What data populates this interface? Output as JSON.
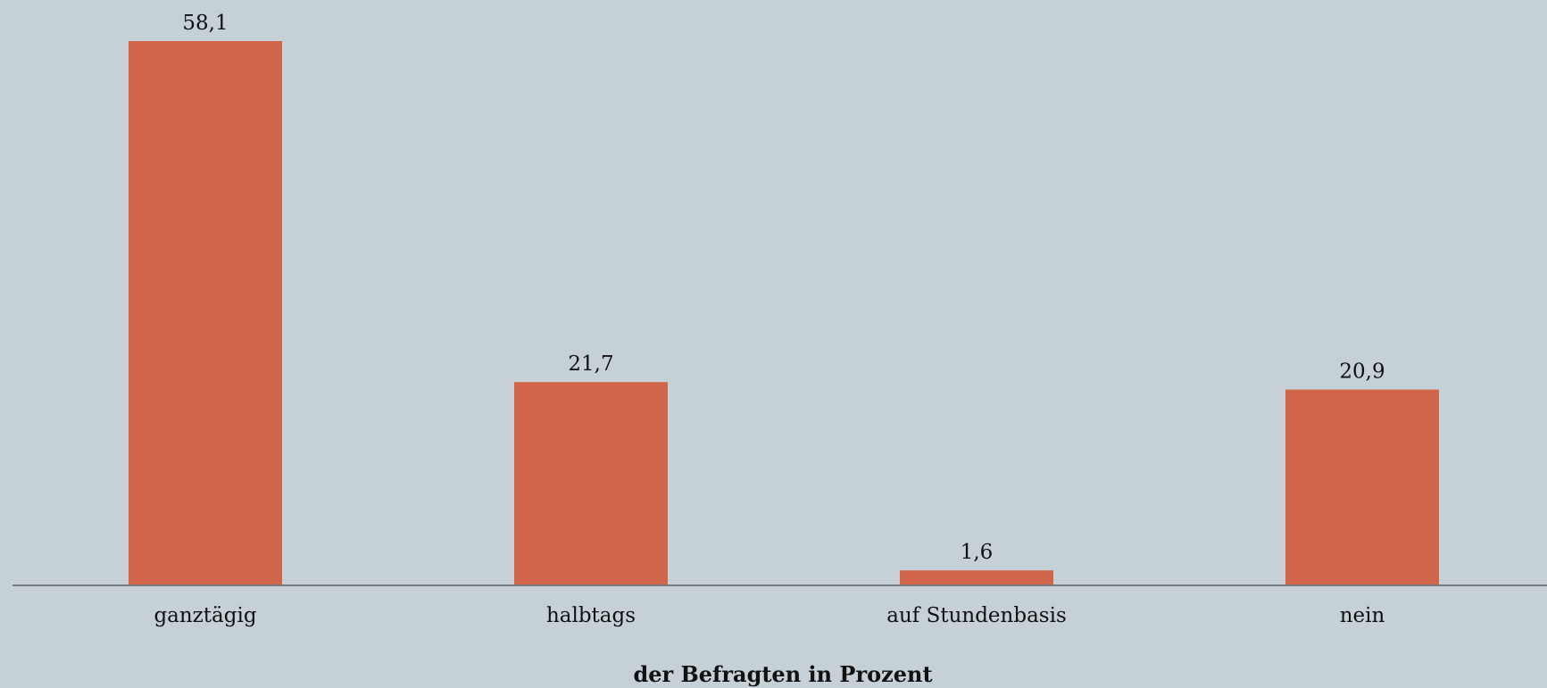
{
  "chart_data": {
    "type": "bar",
    "categories": [
      "ganztägig",
      "halbtags",
      "auf Stundenbasis",
      "nein"
    ],
    "values": [
      58.1,
      21.7,
      1.6,
      20.9
    ],
    "value_labels": [
      "58,1",
      "21,7",
      "1,6",
      "20,9"
    ],
    "title": "",
    "xlabel": "der Befragten in Prozent",
    "ylabel": "",
    "ylim": [
      0,
      58.1
    ],
    "grid": false,
    "legend": "none",
    "colors": {
      "bar": "#d2644a",
      "background": "#c6d1d7",
      "axis": "#7a7a7a"
    }
  }
}
